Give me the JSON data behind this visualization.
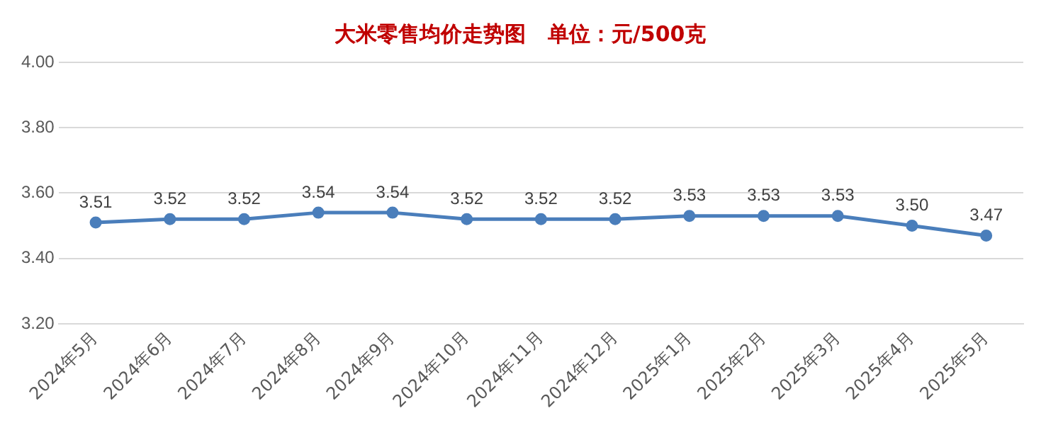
{
  "chart_data": {
    "type": "line",
    "title": "大米零售均价走势图   单位：元/500克",
    "categories": [
      "2024年5月",
      "2024年6月",
      "2024年7月",
      "2024年8月",
      "2024年9月",
      "2024年10月",
      "2024年11月",
      "2024年12月",
      "2025年1月",
      "2025年2月",
      "2025年3月",
      "2025年4月",
      "2025年5月"
    ],
    "series": [
      {
        "color": "#4a7ebb",
        "values": [
          3.51,
          3.52,
          3.52,
          3.54,
          3.54,
          3.52,
          3.52,
          3.52,
          3.53,
          3.53,
          3.53,
          3.5,
          3.47
        ],
        "value_labels": [
          "3.51",
          "3.52",
          "3.52",
          "3.54",
          "3.54",
          "3.52",
          "3.52",
          "3.52",
          "3.53",
          "3.53",
          "3.53",
          "3.50",
          "3.47"
        ]
      }
    ],
    "ylim": [
      3.2,
      4.0
    ],
    "yticks": [
      {
        "value": 3.2,
        "label": "3.20"
      },
      {
        "value": 3.4,
        "label": "3.40"
      },
      {
        "value": 3.6,
        "label": "3.60"
      },
      {
        "value": 3.8,
        "label": "3.80"
      },
      {
        "value": 4.0,
        "label": "4.00"
      }
    ],
    "grid": "y",
    "legend": false,
    "marker": "circle",
    "line_style": "solid"
  }
}
